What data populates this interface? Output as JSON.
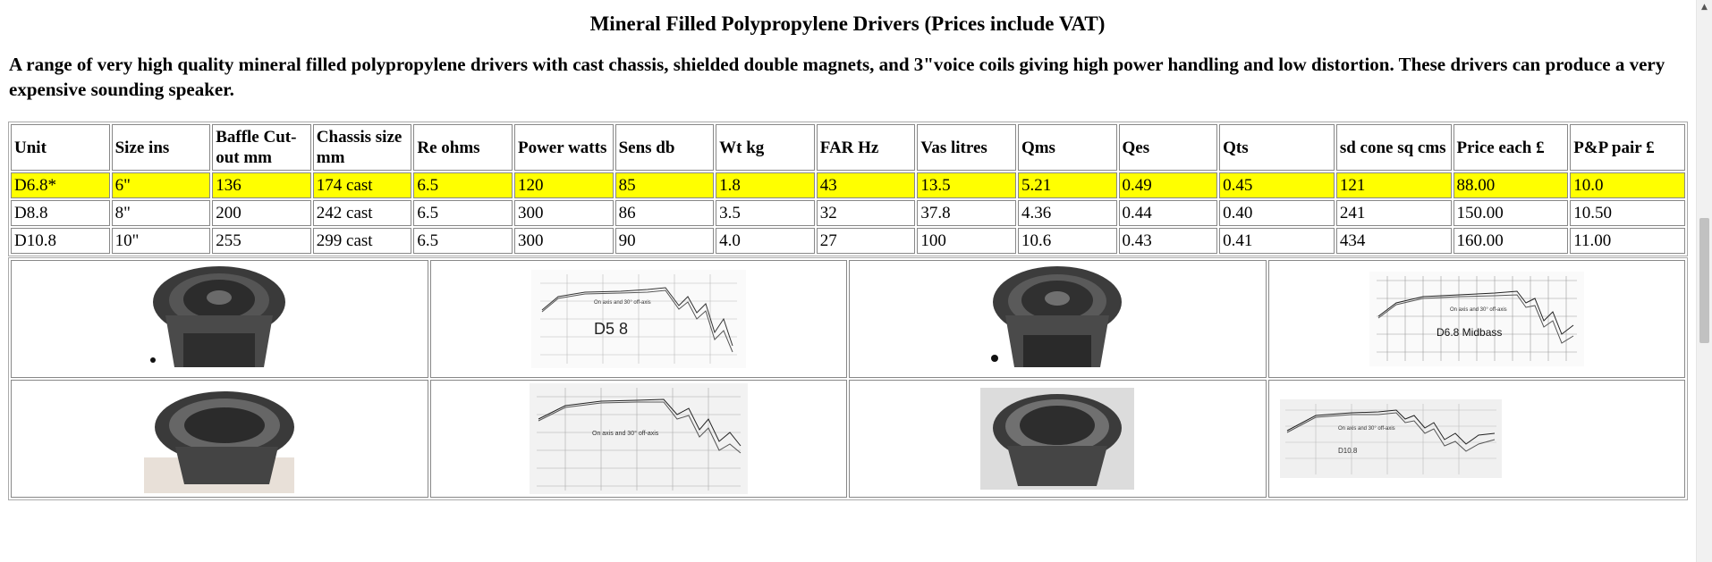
{
  "title": "Mineral Filled Polypropylene Drivers (Prices include VAT)",
  "intro": "A range of very high quality mineral filled polypropylene drivers with cast chassis, shielded double magnets, and 3\"voice coils giving high power handling and low distortion. These drivers can produce a very expensive sounding speaker.",
  "table": {
    "headers": [
      "Unit",
      "Size ins",
      "Baffle Cut-out mm",
      "Chassis size mm",
      "Re ohms",
      "Power watts",
      "Sens db",
      "Wt kg",
      "FAR Hz",
      "Vas litres",
      "Qms",
      "Qes",
      "Qts",
      "sd cone sq cms",
      "Price each £",
      "P&P pair £"
    ],
    "rows": [
      [
        "D6.8*",
        "6\"",
        "136",
        "174 cast",
        "6.5",
        "120",
        "85",
        "1.8",
        "43",
        "13.5",
        "5.21",
        "0.49",
        "0.45",
        "121",
        "88.00",
        "10.0"
      ],
      [
        "D8.8",
        "8\"",
        "200",
        "242 cast",
        "6.5",
        "300",
        "86",
        "3.5",
        "32",
        "37.8",
        "4.36",
        "0.44",
        "0.40",
        "241",
        "150.00",
        "10.50"
      ],
      [
        "D10.8",
        "10\"",
        "255",
        "299 cast",
        "6.5",
        "300",
        "90",
        "4.0",
        "27",
        "100",
        "10.6",
        "0.43",
        "0.41",
        "434",
        "160.00",
        "11.00"
      ]
    ],
    "highlight_color": "#ffff00"
  },
  "graph_labels": {
    "g1_axis_note": "On axis and 30° off-axis",
    "g1_model": "D5 8",
    "g2_axis_note": "On axis and 30° off-axis",
    "g2_model": "D6.8 Midbass",
    "g3_axis_note": "On axis and 30° off-axis",
    "g4_axis_note": "On axis and 30° off-axis",
    "g4_model": "D10.8"
  }
}
